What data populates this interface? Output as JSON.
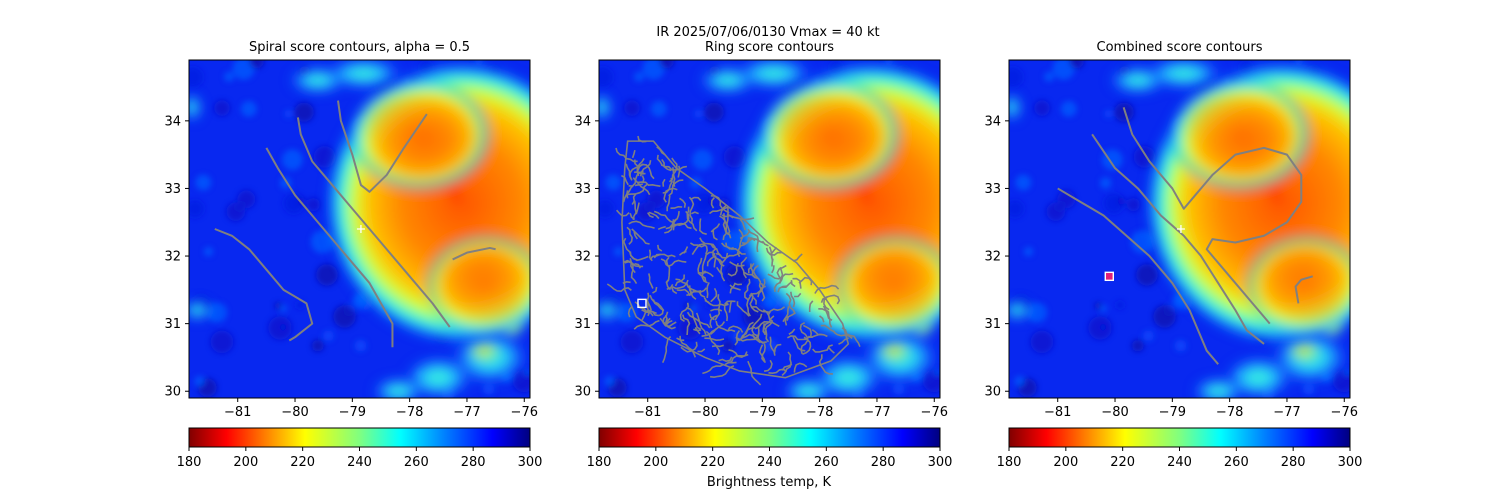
{
  "figure": {
    "suptitle": "IR  2025/07/06/0130    Vmax = 40 kt",
    "colorbar_label": "Brightness temp, K"
  },
  "chart_data": [
    {
      "type": "heatmap",
      "title": "Spiral score contours, alpha =  0.5",
      "xlim": [
        -81.85,
        -75.9
      ],
      "ylim": [
        29.9,
        34.9
      ],
      "xticks": [
        "-81",
        "-80",
        "-79",
        "-78",
        "-77",
        "-76"
      ],
      "yticks": [
        "30",
        "31",
        "32",
        "33",
        "34"
      ],
      "colormap": "jet_r",
      "color_range": [
        180,
        300
      ],
      "colorbar_ticks": [
        "180",
        "200",
        "220",
        "240",
        "260",
        "280",
        "300"
      ],
      "storm_cold_center": {
        "lon": -77.2,
        "lat": 32.9,
        "temp_K": 200
      },
      "marker_center_plus": {
        "lon": -78.85,
        "lat": 32.4
      },
      "contours": [
        [
          [
            -81.4,
            32.4
          ],
          [
            -81.1,
            32.3
          ],
          [
            -80.8,
            32.1
          ],
          [
            -80.5,
            31.8
          ],
          [
            -80.2,
            31.5
          ],
          [
            -79.8,
            31.3
          ],
          [
            -79.7,
            31.0
          ],
          [
            -80.0,
            30.8
          ],
          [
            -80.1,
            30.75
          ]
        ],
        [
          [
            -80.5,
            33.6
          ],
          [
            -80.3,
            33.3
          ],
          [
            -80.0,
            32.9
          ],
          [
            -79.6,
            32.5
          ],
          [
            -79.3,
            32.2
          ],
          [
            -79.0,
            31.9
          ],
          [
            -78.7,
            31.6
          ],
          [
            -78.5,
            31.3
          ],
          [
            -78.3,
            31.0
          ],
          [
            -78.3,
            30.65
          ]
        ],
        [
          [
            -79.95,
            34.05
          ],
          [
            -79.9,
            33.8
          ],
          [
            -79.7,
            33.4
          ],
          [
            -79.3,
            33.0
          ],
          [
            -79.0,
            32.7
          ],
          [
            -78.6,
            32.3
          ],
          [
            -78.2,
            31.9
          ],
          [
            -77.9,
            31.6
          ],
          [
            -77.6,
            31.3
          ],
          [
            -77.3,
            30.95
          ]
        ],
        [
          [
            -79.25,
            34.3
          ],
          [
            -79.2,
            34.0
          ],
          [
            -79.0,
            33.5
          ],
          [
            -78.85,
            33.05
          ],
          [
            -78.7,
            32.95
          ],
          [
            -78.4,
            33.2
          ],
          [
            -78.1,
            33.6
          ],
          [
            -77.7,
            34.1
          ]
        ],
        [
          [
            -77.25,
            31.95
          ],
          [
            -77.0,
            32.05
          ],
          [
            -76.6,
            32.12
          ],
          [
            -76.5,
            32.1
          ]
        ]
      ]
    },
    {
      "type": "heatmap",
      "title": "Ring score contours",
      "xlim": [
        -81.85,
        -75.9
      ],
      "ylim": [
        29.9,
        34.9
      ],
      "xticks": [
        "-81",
        "-80",
        "-79",
        "-78",
        "-77",
        "-76"
      ],
      "yticks": [
        "30",
        "31",
        "32",
        "33",
        "34"
      ],
      "colormap": "jet_r",
      "color_range": [
        180,
        300
      ],
      "colorbar_ticks": [
        "180",
        "200",
        "220",
        "240",
        "260",
        "280",
        "300"
      ],
      "storm_cold_center": {
        "lon": -77.2,
        "lat": 32.9,
        "temp_K": 200
      },
      "marker_square": {
        "lon": -81.1,
        "lat": 31.3
      },
      "contour_region_outline": [
        [
          -81.35,
          33.7
        ],
        [
          -80.9,
          33.7
        ],
        [
          -80.5,
          33.3
        ],
        [
          -80.0,
          33.0
        ],
        [
          -79.4,
          32.6
        ],
        [
          -78.9,
          32.2
        ],
        [
          -78.4,
          31.9
        ],
        [
          -78.0,
          31.5
        ],
        [
          -77.6,
          31.0
        ],
        [
          -77.5,
          30.7
        ],
        [
          -77.8,
          30.45
        ],
        [
          -78.6,
          30.2
        ],
        [
          -79.4,
          30.3
        ],
        [
          -80.0,
          30.5
        ],
        [
          -80.7,
          30.8
        ],
        [
          -81.2,
          31.1
        ],
        [
          -81.4,
          31.5
        ],
        [
          -81.45,
          32.5
        ],
        [
          -81.4,
          33.3
        ]
      ]
    },
    {
      "type": "heatmap",
      "title": "Combined score contours",
      "xlim": [
        -81.85,
        -75.9
      ],
      "ylim": [
        29.9,
        34.9
      ],
      "xticks": [
        "-81",
        "-80",
        "-79",
        "-78",
        "-77",
        "-76"
      ],
      "yticks": [
        "30",
        "31",
        "32",
        "33",
        "34"
      ],
      "colormap": "jet_r",
      "color_range": [
        180,
        300
      ],
      "colorbar_ticks": [
        "180",
        "200",
        "220",
        "240",
        "260",
        "280",
        "300"
      ],
      "storm_cold_center": {
        "lon": -77.2,
        "lat": 32.9,
        "temp_K": 200
      },
      "marker_center_plus": {
        "lon": -78.85,
        "lat": 32.4
      },
      "marker_square": {
        "lon": -80.1,
        "lat": 31.7
      },
      "contours": [
        [
          [
            -81.0,
            33.0
          ],
          [
            -80.6,
            32.8
          ],
          [
            -80.2,
            32.6
          ],
          [
            -79.8,
            32.3
          ],
          [
            -79.4,
            32.0
          ],
          [
            -79.0,
            31.6
          ],
          [
            -78.7,
            31.2
          ],
          [
            -78.5,
            30.8
          ],
          [
            -78.4,
            30.6
          ],
          [
            -78.2,
            30.4
          ]
        ],
        [
          [
            -80.4,
            33.8
          ],
          [
            -80.0,
            33.3
          ],
          [
            -79.6,
            33.0
          ],
          [
            -79.2,
            32.6
          ],
          [
            -78.8,
            32.3
          ],
          [
            -78.5,
            32.0
          ],
          [
            -78.2,
            31.6
          ],
          [
            -77.9,
            31.2
          ],
          [
            -77.7,
            30.9
          ],
          [
            -77.4,
            30.7
          ]
        ],
        [
          [
            -79.85,
            34.2
          ],
          [
            -79.7,
            33.8
          ],
          [
            -79.4,
            33.4
          ],
          [
            -79.0,
            33.0
          ],
          [
            -78.8,
            32.7
          ],
          [
            -78.6,
            32.9
          ],
          [
            -78.3,
            33.2
          ],
          [
            -77.9,
            33.5
          ],
          [
            -77.4,
            33.6
          ],
          [
            -77.0,
            33.5
          ],
          [
            -76.75,
            33.2
          ],
          [
            -76.75,
            32.8
          ],
          [
            -77.0,
            32.5
          ],
          [
            -77.4,
            32.3
          ],
          [
            -77.9,
            32.2
          ],
          [
            -78.3,
            32.25
          ],
          [
            -78.4,
            32.1
          ],
          [
            -78.2,
            31.9
          ],
          [
            -77.9,
            31.6
          ],
          [
            -77.6,
            31.3
          ],
          [
            -77.3,
            31.0
          ]
        ],
        [
          [
            -76.8,
            31.3
          ],
          [
            -76.85,
            31.55
          ],
          [
            -76.75,
            31.65
          ],
          [
            -76.55,
            31.7
          ]
        ]
      ]
    }
  ]
}
